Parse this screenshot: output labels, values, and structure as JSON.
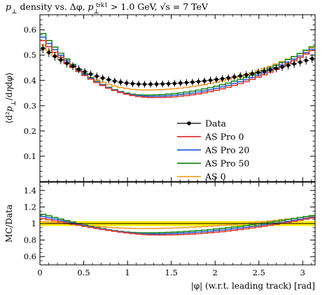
{
  "chart_data": {
    "type": "line",
    "title": "p⊥ density vs. Δφ, p⊥trk1 > 1.0 GeV, √s = 7 TeV",
    "title_parts": {
      "a": "p",
      "b": "⊥",
      "c": " density vs. Δφ, ",
      "d": "p",
      "e": "⊥",
      "f": "trk1",
      "g": " > 1.0 GeV, √s = 7 TeV"
    },
    "xlabel": "|φ| (w.r.t. leading track) [rad]",
    "ylabel_main": "⟨d²p⊥/dηdφ⟩",
    "ylabel_ratio": "MC/Data",
    "xlim": [
      0,
      3.1416
    ],
    "ylim_main": [
      0,
      0.66
    ],
    "ylim_ratio": [
      0.5,
      1.5
    ],
    "x_ticks": [
      "0",
      "0.5",
      "1",
      "1.5",
      "2",
      "2.5",
      "3"
    ],
    "x_tick_values": [
      0,
      0.5,
      1,
      1.5,
      2,
      2.5,
      3
    ],
    "y_ticks_main": [
      "0.1",
      "0.2",
      "0.3",
      "0.4",
      "0.5",
      "0.6"
    ],
    "y_tick_values_main": [
      0.1,
      0.2,
      0.3,
      0.4,
      0.5,
      0.6
    ],
    "y_ticks_ratio": [
      "0.6",
      "0.8",
      "1",
      "1.2",
      "1.4"
    ],
    "y_tick_values_ratio": [
      0.6,
      0.8,
      1.0,
      1.2,
      1.4
    ],
    "grid": false,
    "legend_position": "lower-right",
    "nbins": 46,
    "ratio_band": {
      "low": 0.97,
      "high": 1.03,
      "color": "#ffee00"
    },
    "series": [
      {
        "name": "Data",
        "color": "#000000",
        "style": "points",
        "y_at_0": 0.535,
        "y_min": 0.385,
        "x_at_min": 1.2,
        "y_at_pi": 0.49,
        "rel_error": 0.035
      },
      {
        "name": "AS Pro 0",
        "color": "#e23a2e",
        "style": "step",
        "y_at_0": 0.57,
        "y_min": 0.332,
        "x_at_min": 1.3,
        "y_at_pi": 0.525
      },
      {
        "name": "AS Pro 20",
        "color": "#2b62d8",
        "style": "step",
        "y_at_0": 0.585,
        "y_min": 0.337,
        "x_at_min": 1.25,
        "y_at_pi": 0.53
      },
      {
        "name": "AS Pro 50",
        "color": "#1f8c1f",
        "style": "step",
        "y_at_0": 0.6,
        "y_min": 0.342,
        "x_at_min": 1.2,
        "y_at_pi": 0.54
      },
      {
        "name": "AS 0",
        "color": "#f5a030",
        "style": "step",
        "y_at_0": 0.55,
        "y_min": 0.362,
        "x_at_min": 1.2,
        "y_at_pi": 0.535
      }
    ]
  }
}
